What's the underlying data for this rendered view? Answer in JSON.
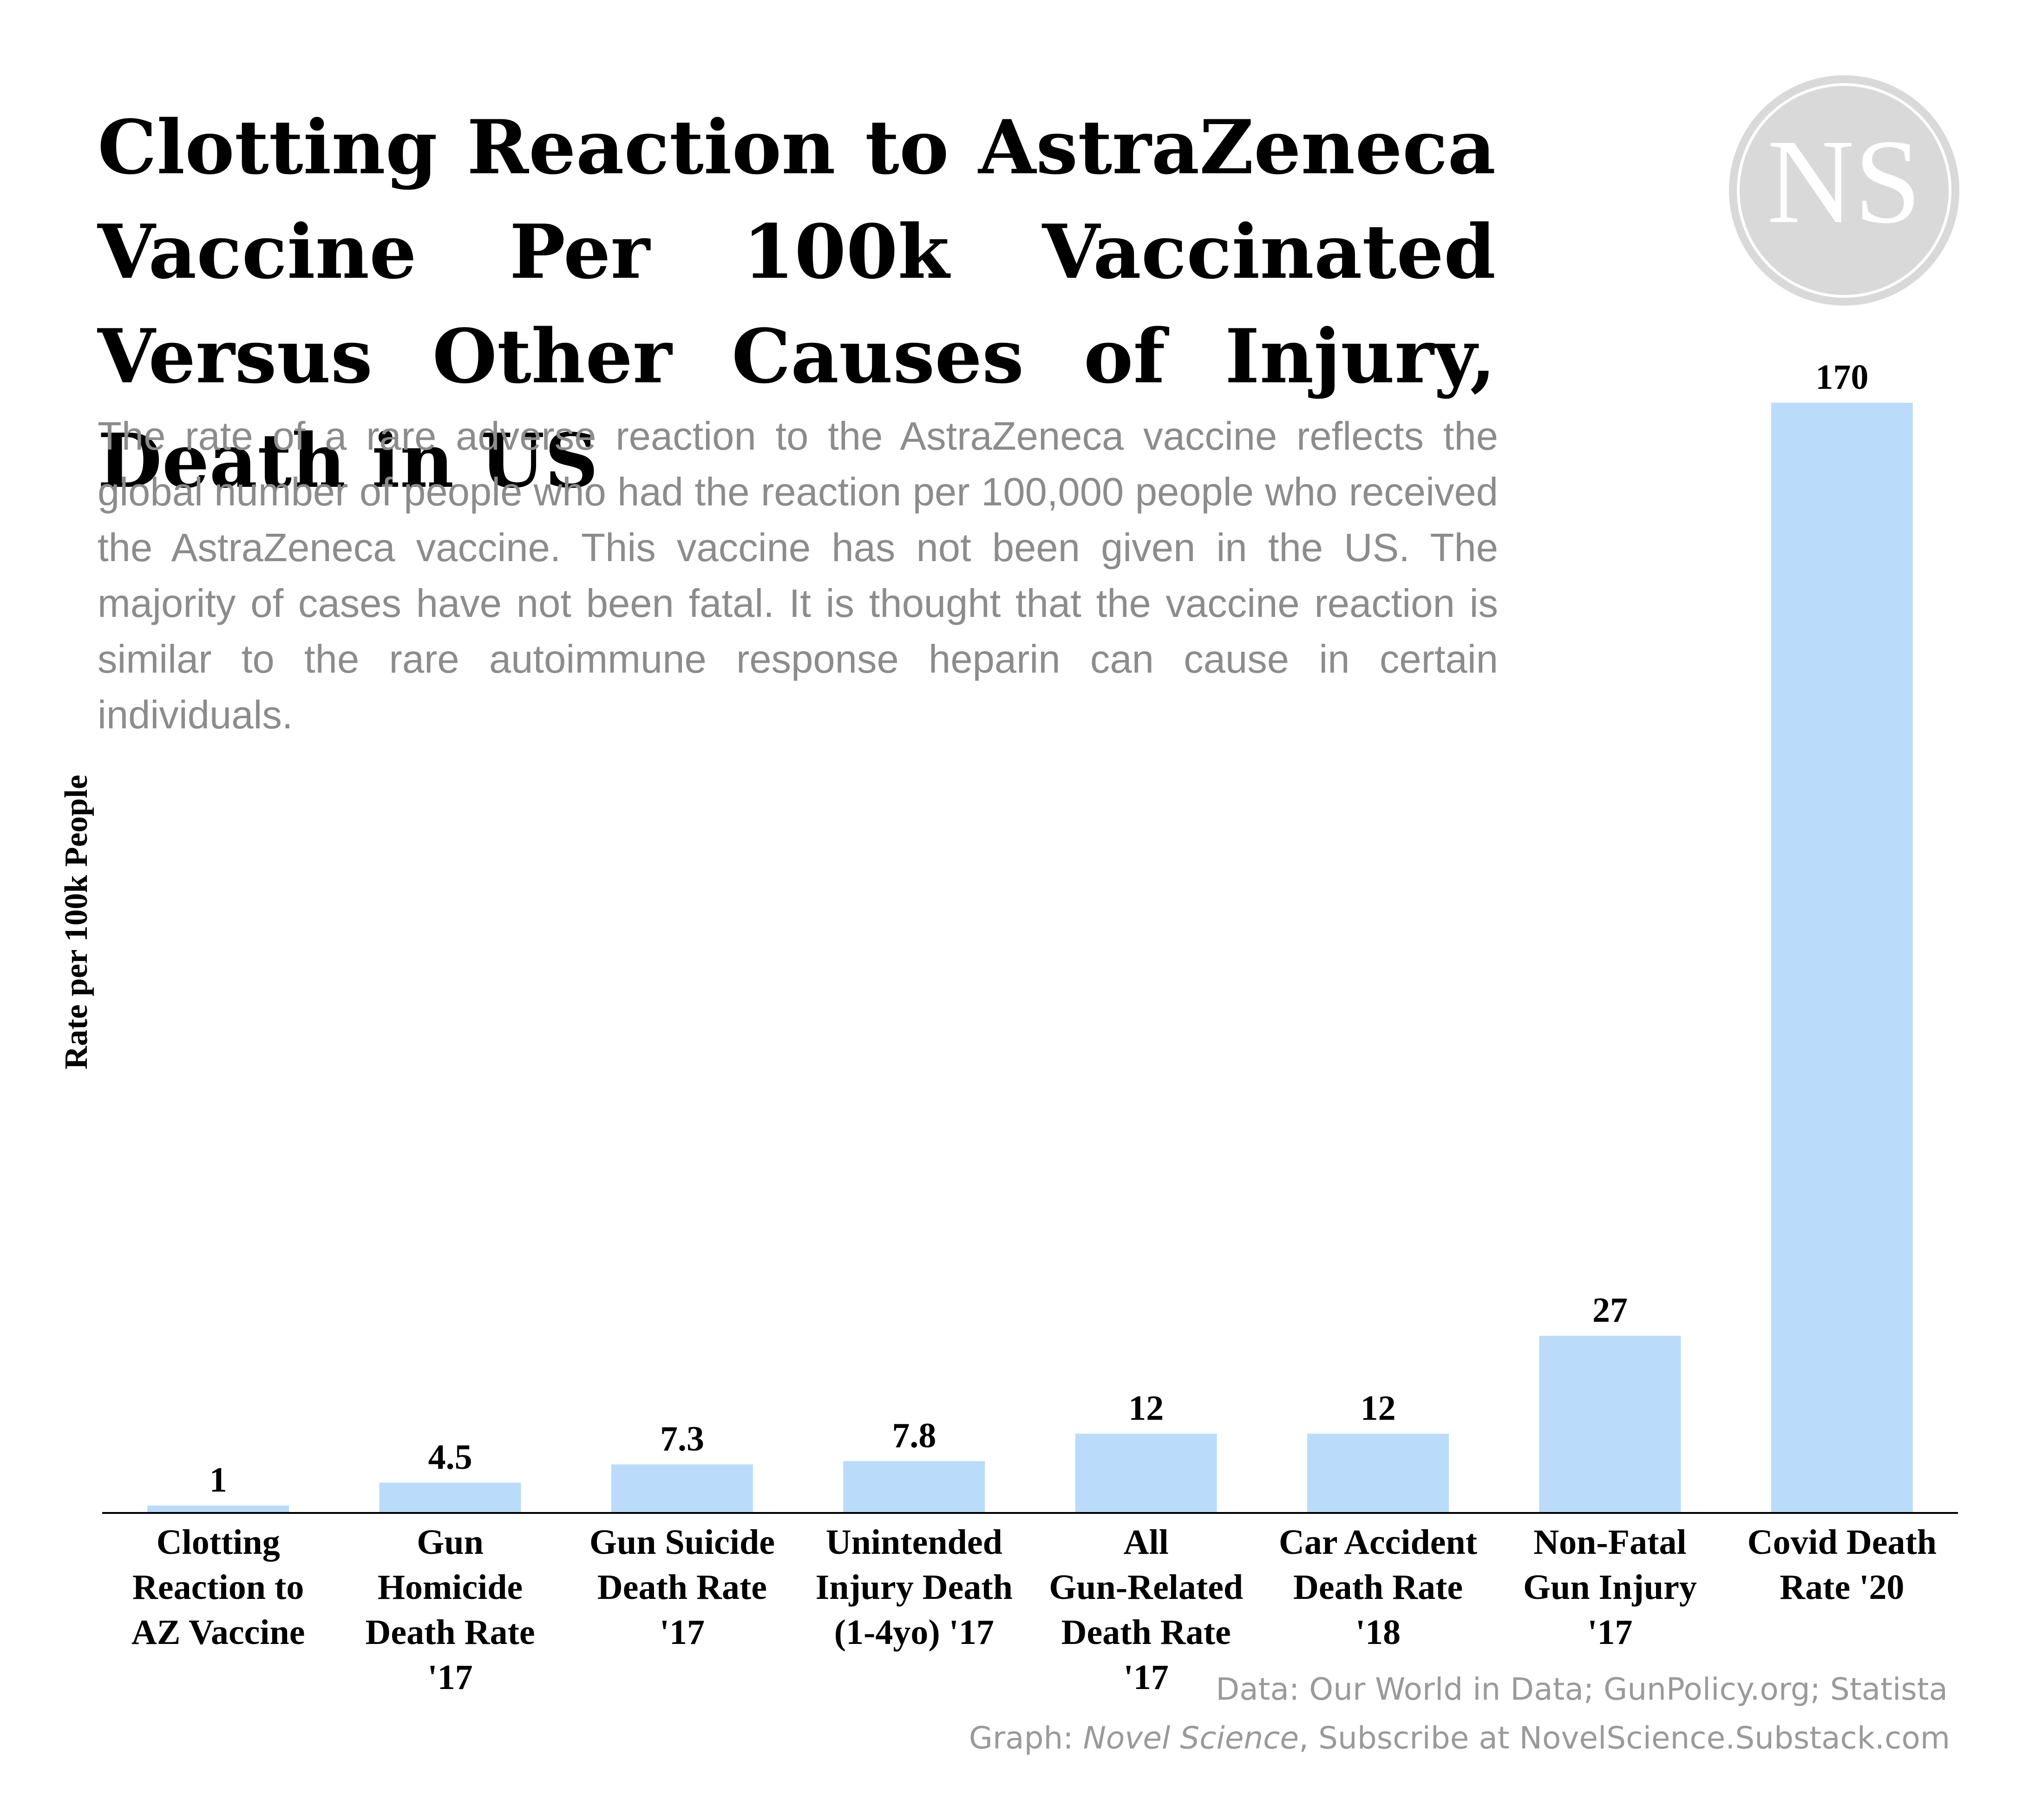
{
  "title": "Clotting Reaction to AstraZeneca Vaccine Per 100k Vaccinated Versus Other Causes of Injury, Death in US",
  "subtitle": "The rate of a rare adverse reaction to the AstraZeneca vaccine reflects the global number of people who had the reaction per 100,000 people who received the AstraZeneca vaccine. This vaccine has not been given in the US. The majority of cases have not been fatal. It is thought that the vaccine reaction is similar to the rare autoimmune response heparin can cause in certain individuals.",
  "logo_text": "NS",
  "source": {
    "data_line": "Data: Our World in Data; GunPolicy.org; Statista",
    "graph_prefix": "Graph: ",
    "graph_name": "Novel Science",
    "graph_suffix": ", Subscribe at NovelScience.Substack.com"
  },
  "colors": {
    "bar": "#bbdbfa",
    "axis": "#000000",
    "logo_circle": "#d9d9d9",
    "subtitle": "#8c8c8c",
    "source": "#9a9a9a"
  },
  "chart_data": {
    "type": "bar",
    "ylabel": "Rate per 100k People",
    "xlabel": "",
    "ylim": [
      0,
      170
    ],
    "grid": false,
    "categories": [
      [
        "Clotting",
        "Reaction to",
        "AZ Vaccine"
      ],
      [
        "Gun",
        "Homicide",
        "Death Rate",
        "'17"
      ],
      [
        "Gun Suicide",
        "Death Rate",
        "'17"
      ],
      [
        "Unintended",
        "Injury Death",
        "(1-4yo) '17"
      ],
      [
        "All",
        "Gun-Related",
        "Death Rate",
        "'17"
      ],
      [
        "Car Accident",
        "Death Rate",
        "'18"
      ],
      [
        "Non-Fatal",
        "Gun Injury",
        "'17"
      ],
      [
        "Covid Death",
        "Rate '20"
      ]
    ],
    "values": [
      1,
      4.5,
      7.3,
      7.8,
      12,
      12,
      27,
      170
    ],
    "value_labels": [
      "1",
      "4.5",
      "7.3",
      "7.8",
      "12",
      "12",
      "27",
      "170"
    ]
  }
}
